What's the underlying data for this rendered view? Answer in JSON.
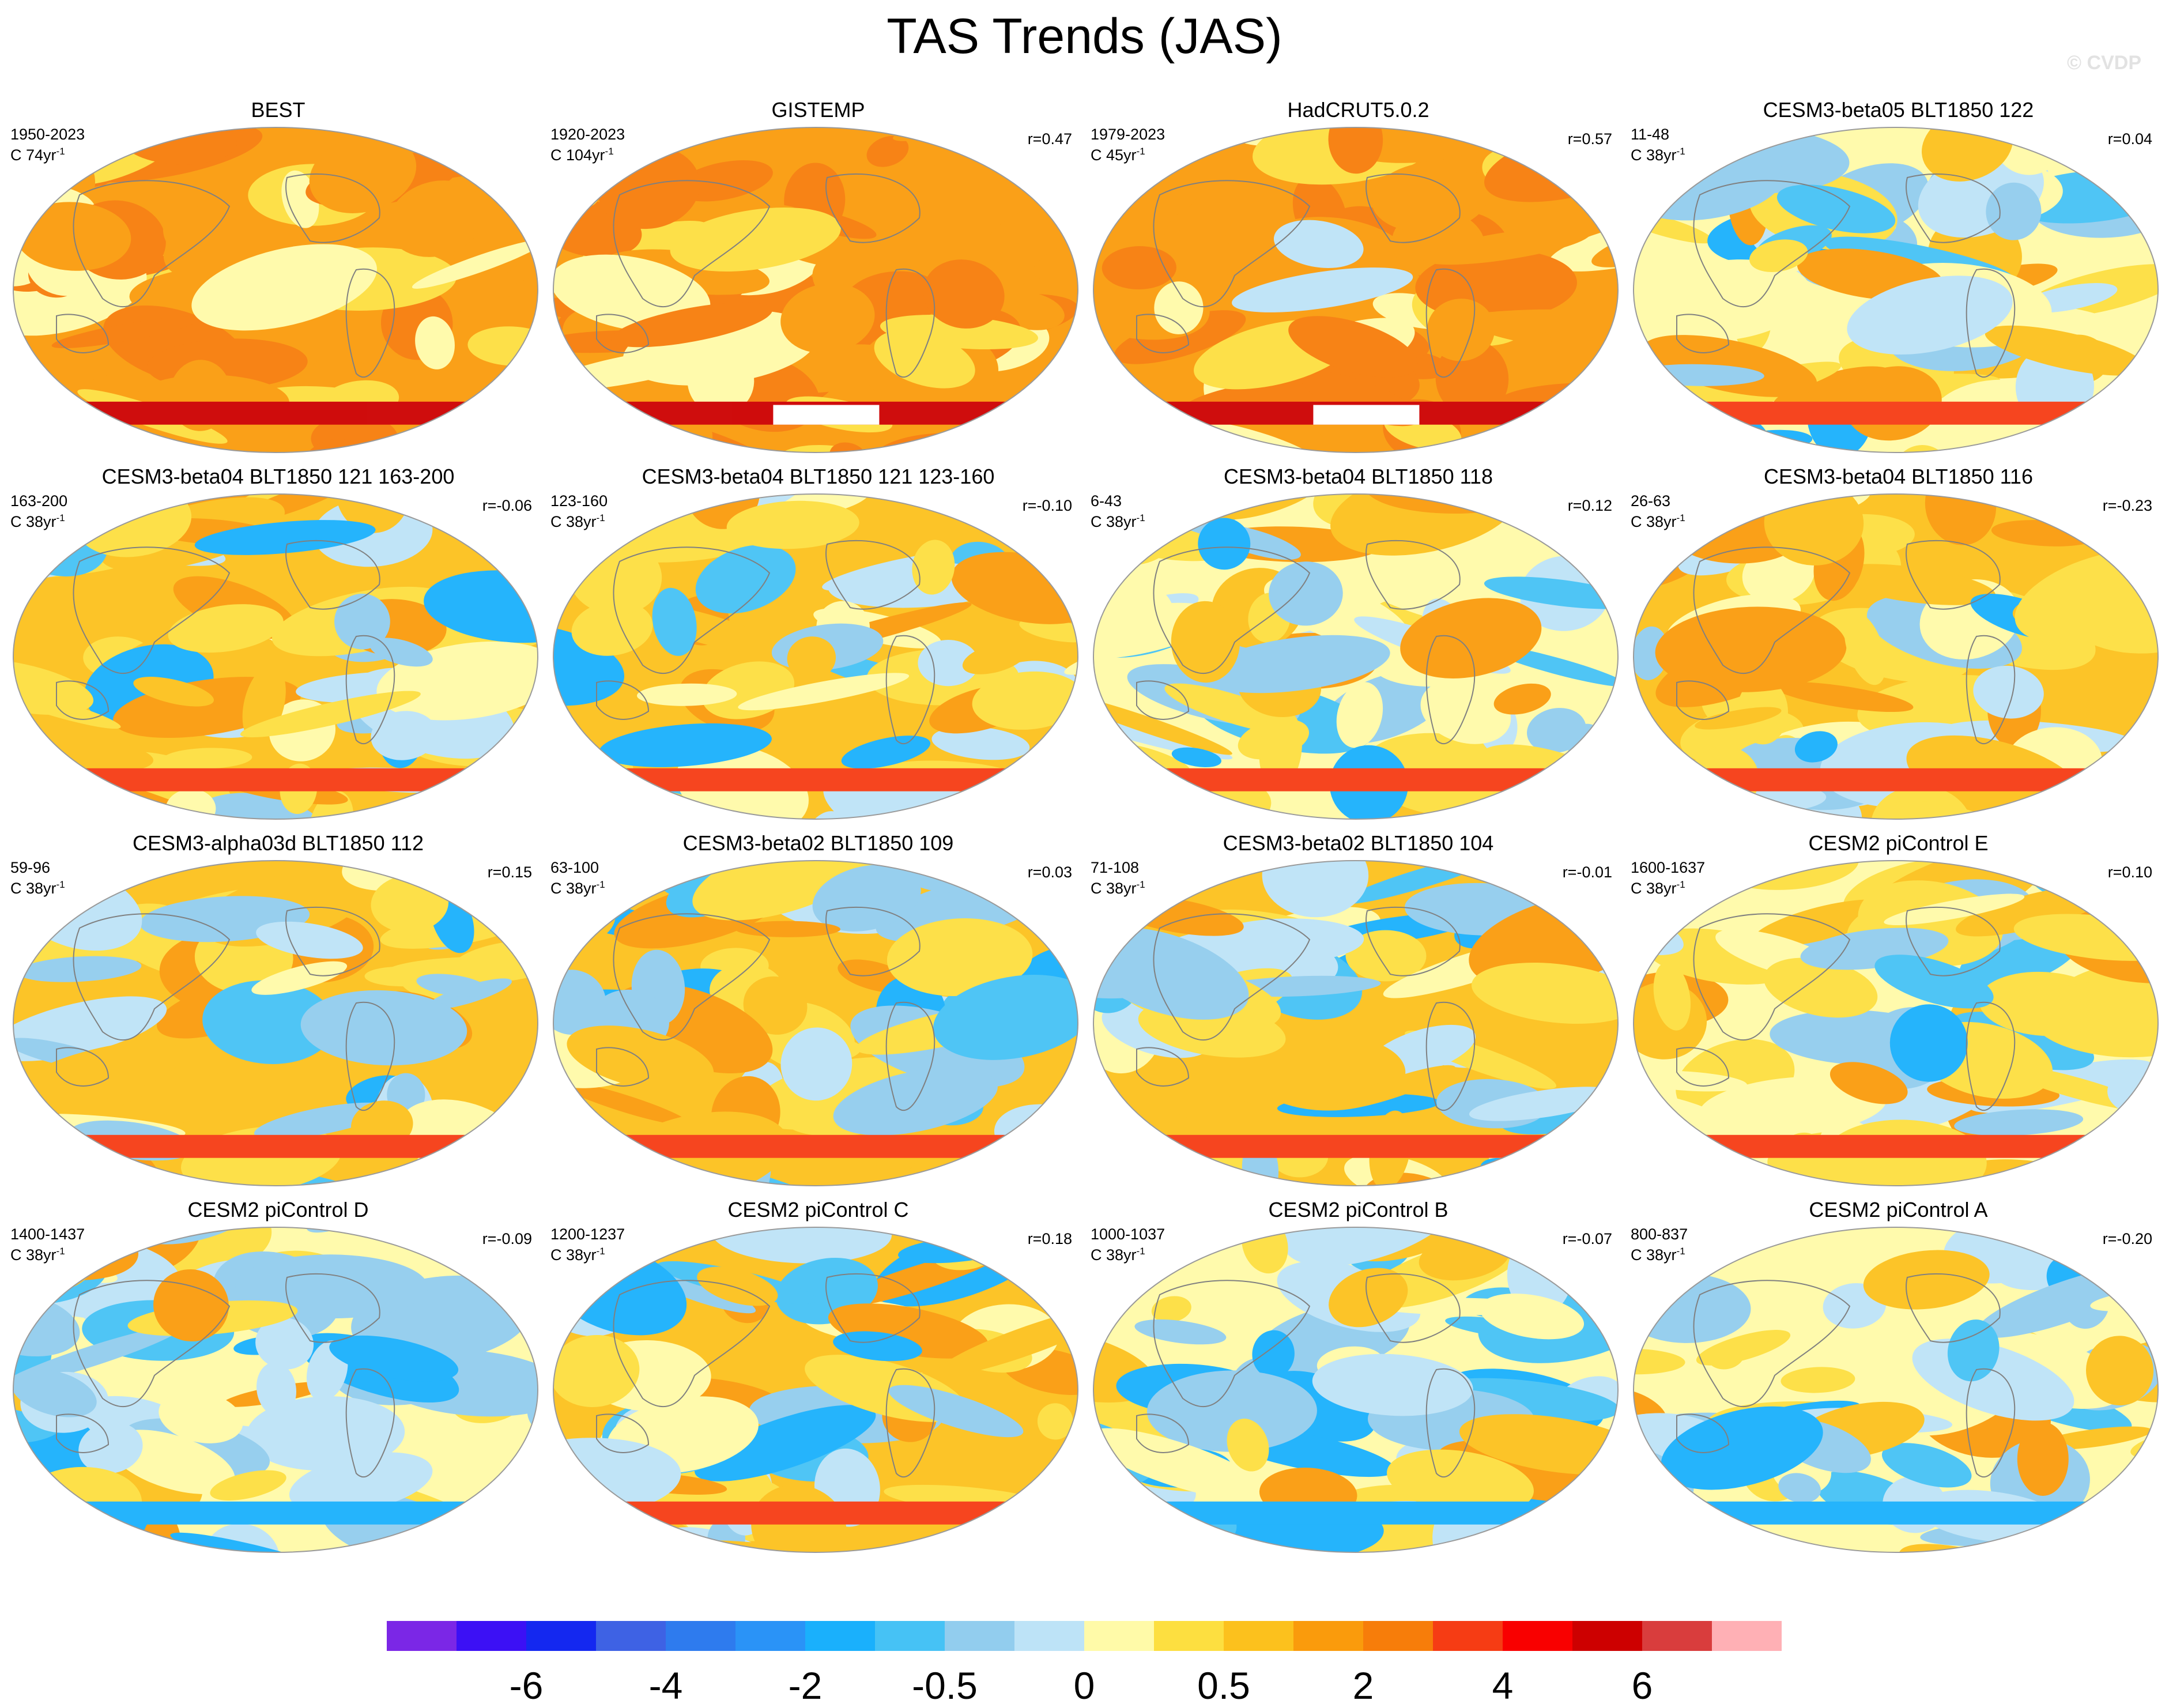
{
  "title": "TAS Trends (JAS)",
  "watermark": "© CVDP",
  "projection": "robinson-style global map",
  "panels": [
    {
      "title": "BEST",
      "period": "1950-2023",
      "units_base": "C 74yr",
      "units_exp": "-1",
      "corr": "",
      "warm_level": 0.9,
      "blue_fraction": 0.0,
      "coverage_gap": false
    },
    {
      "title": "GISTEMP",
      "period": "1920-2023",
      "units_base": "C 104yr",
      "units_exp": "-1",
      "corr": "r=0.47",
      "warm_level": 0.9,
      "blue_fraction": 0.0,
      "coverage_gap": true
    },
    {
      "title": "HadCRUT5.0.2",
      "period": "1979-2023",
      "units_base": "C 45yr",
      "units_exp": "-1",
      "corr": "r=0.57",
      "warm_level": 0.85,
      "blue_fraction": 0.05,
      "coverage_gap": true
    },
    {
      "title": "CESM3-beta05 BLT1850 122",
      "period": "11-48",
      "units_base": "C 38yr",
      "units_exp": "-1",
      "corr": "r=0.04",
      "warm_level": 0.4,
      "blue_fraction": 0.45,
      "coverage_gap": false
    },
    {
      "title": "CESM3-beta04 BLT1850 121 163-200",
      "period": "163-200",
      "units_base": "C 38yr",
      "units_exp": "-1",
      "corr": "r=-0.06",
      "warm_level": 0.6,
      "blue_fraction": 0.35,
      "coverage_gap": false
    },
    {
      "title": "CESM3-beta04 BLT1850 121 123-160",
      "period": "123-160",
      "units_base": "C 38yr",
      "units_exp": "-1",
      "corr": "r=-0.10",
      "warm_level": 0.5,
      "blue_fraction": 0.45,
      "coverage_gap": false
    },
    {
      "title": "CESM3-beta04 BLT1850 118",
      "period": "6-43",
      "units_base": "C 38yr",
      "units_exp": "-1",
      "corr": "r=0.12",
      "warm_level": 0.4,
      "blue_fraction": 0.5,
      "coverage_gap": false
    },
    {
      "title": "CESM3-beta04 BLT1850 116",
      "period": "26-63",
      "units_base": "C 38yr",
      "units_exp": "-1",
      "corr": "r=-0.23",
      "warm_level": 0.65,
      "blue_fraction": 0.3,
      "coverage_gap": false
    },
    {
      "title": "CESM3-alpha03d BLT1850 112",
      "period": "59-96",
      "units_base": "C 38yr",
      "units_exp": "-1",
      "corr": "r=0.15",
      "warm_level": 0.55,
      "blue_fraction": 0.4,
      "coverage_gap": false
    },
    {
      "title": "CESM3-beta02 BLT1850 109",
      "period": "63-100",
      "units_base": "C 38yr",
      "units_exp": "-1",
      "corr": "r=0.03",
      "warm_level": 0.5,
      "blue_fraction": 0.45,
      "coverage_gap": false
    },
    {
      "title": "CESM3-beta02 BLT1850 104",
      "period": "71-108",
      "units_base": "C 38yr",
      "units_exp": "-1",
      "corr": "r=-0.01",
      "warm_level": 0.5,
      "blue_fraction": 0.45,
      "coverage_gap": false
    },
    {
      "title": "CESM2 piControl E",
      "period": "1600-1637",
      "units_base": "C 38yr",
      "units_exp": "-1",
      "corr": "r=0.10",
      "warm_level": 0.45,
      "blue_fraction": 0.45,
      "coverage_gap": false
    },
    {
      "title": "CESM2 piControl D",
      "period": "1400-1437",
      "units_base": "C 38yr",
      "units_exp": "-1",
      "corr": "r=-0.09",
      "warm_level": 0.35,
      "blue_fraction": 0.55,
      "coverage_gap": false
    },
    {
      "title": "CESM2 piControl C",
      "period": "1200-1237",
      "units_base": "C 38yr",
      "units_exp": "-1",
      "corr": "r=0.18",
      "warm_level": 0.5,
      "blue_fraction": 0.4,
      "coverage_gap": false
    },
    {
      "title": "CESM2 piControl B",
      "period": "1000-1037",
      "units_base": "C 38yr",
      "units_exp": "-1",
      "corr": "r=-0.07",
      "warm_level": 0.35,
      "blue_fraction": 0.55,
      "coverage_gap": false
    },
    {
      "title": "CESM2 piControl A",
      "period": "800-837",
      "units_base": "C 38yr",
      "units_exp": "-1",
      "corr": "r=-0.20",
      "warm_level": 0.35,
      "blue_fraction": 0.55,
      "coverage_gap": false
    }
  ],
  "colorbar": {
    "colors": [
      "#7b27e6",
      "#3c10f5",
      "#1428f0",
      "#3e62e4",
      "#2e7bee",
      "#2a93f7",
      "#1ab0fc",
      "#46c2f5",
      "#92cdee",
      "#bde3f7",
      "#fffaa8",
      "#fddf40",
      "#fcc11d",
      "#fa9b0c",
      "#f77d0a",
      "#f63c14",
      "#f90000",
      "#cd0000",
      "#d93d3d",
      "#ffb0b5"
    ],
    "labels": [
      "-6",
      "-4",
      "-2",
      "-0.5",
      "0",
      "0.5",
      "2",
      "4",
      "6"
    ],
    "label_boundaries": [
      2,
      4,
      6,
      8,
      10,
      12,
      14,
      16,
      18
    ]
  }
}
